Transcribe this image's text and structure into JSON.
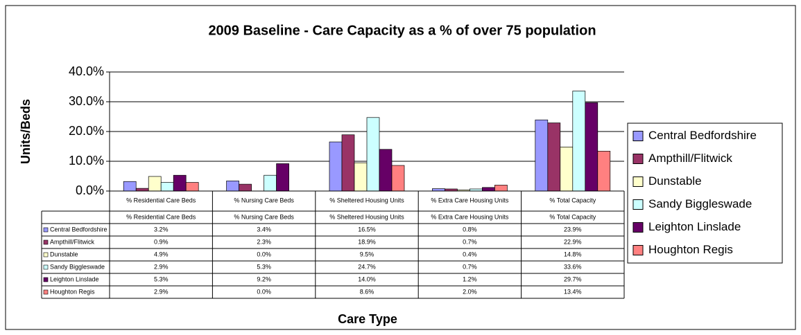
{
  "chart_data": {
    "type": "bar",
    "title": "2009 Baseline - Care Capacity as a % of over 75 population",
    "y_label": "Units/Beds",
    "x_label": "Care Type",
    "categories": [
      "% Residential Care Beds",
      "% Nursing Care Beds",
      "% Sheltered Housing Units",
      "% Extra Care Housing Units",
      "% Total Capacity"
    ],
    "series": [
      {
        "name": "Central Bedfordshire",
        "color": "#9999ff",
        "values": [
          3.2,
          3.4,
          16.5,
          0.8,
          23.9
        ],
        "value_labels": [
          "3.2%",
          "3.4%",
          "16.5%",
          "0.8%",
          "23.9%"
        ]
      },
      {
        "name": "Ampthill/Flitwick",
        "color": "#993366",
        "values": [
          0.9,
          2.3,
          18.9,
          0.7,
          22.9
        ],
        "value_labels": [
          "0.9%",
          "2.3%",
          "18.9%",
          "0.7%",
          "22.9%"
        ]
      },
      {
        "name": "Dunstable",
        "color": "#ffffcc",
        "values": [
          4.9,
          0.0,
          9.5,
          0.4,
          14.8
        ],
        "value_labels": [
          "4.9%",
          "0.0%",
          "9.5%",
          "0.4%",
          "14.8%"
        ]
      },
      {
        "name": "Sandy Biggleswade",
        "color": "#ccffff",
        "values": [
          2.9,
          5.3,
          24.7,
          0.7,
          33.6
        ],
        "value_labels": [
          "2.9%",
          "5.3%",
          "24.7%",
          "0.7%",
          "33.6%"
        ]
      },
      {
        "name": "Leighton Linslade",
        "color": "#660066",
        "values": [
          5.3,
          9.2,
          14.0,
          1.2,
          29.7
        ],
        "value_labels": [
          "5.3%",
          "9.2%",
          "14.0%",
          "1.2%",
          "29.7%"
        ]
      },
      {
        "name": "Houghton Regis",
        "color": "#ff8080",
        "values": [
          2.9,
          0.0,
          8.6,
          2.0,
          13.4
        ],
        "value_labels": [
          "2.9%",
          "0.0%",
          "8.6%",
          "2.0%",
          "13.4%"
        ]
      }
    ],
    "ylim": [
      0,
      40
    ],
    "yticks": [
      {
        "value": 0,
        "label": "0.0%"
      },
      {
        "value": 10,
        "label": "10.0%"
      },
      {
        "value": 20,
        "label": "20.0%"
      },
      {
        "value": 30,
        "label": "30.0%"
      },
      {
        "value": 40,
        "label": "40.0%"
      }
    ],
    "grid": true,
    "legend": "right"
  }
}
